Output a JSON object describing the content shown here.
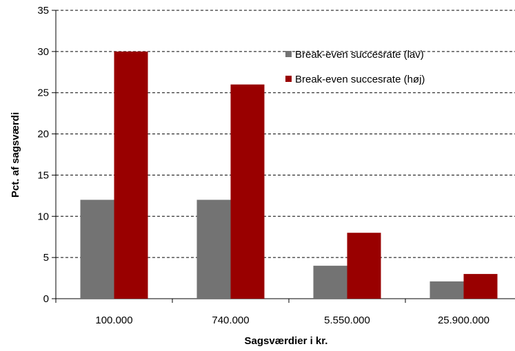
{
  "chart_data": {
    "type": "bar",
    "title": "",
    "xlabel": "Sagsværdier i kr.",
    "ylabel": "Pct. af sagsværdi",
    "categories": [
      "100.000",
      "740.000",
      "5.550.000",
      "25.900.000"
    ],
    "series": [
      {
        "name": "Break-even succesrate (lav)",
        "values": [
          12,
          12,
          4,
          2.1
        ],
        "color": "#737373"
      },
      {
        "name": "Break-even succesrate (høj)",
        "values": [
          30,
          26,
          8,
          3
        ],
        "color": "#990000"
      }
    ],
    "ylim": [
      0,
      35
    ],
    "yticks": [
      "0",
      "5",
      "10",
      "15",
      "20",
      "25",
      "30",
      "35"
    ],
    "grid": true,
    "legend_position": "top-right"
  }
}
